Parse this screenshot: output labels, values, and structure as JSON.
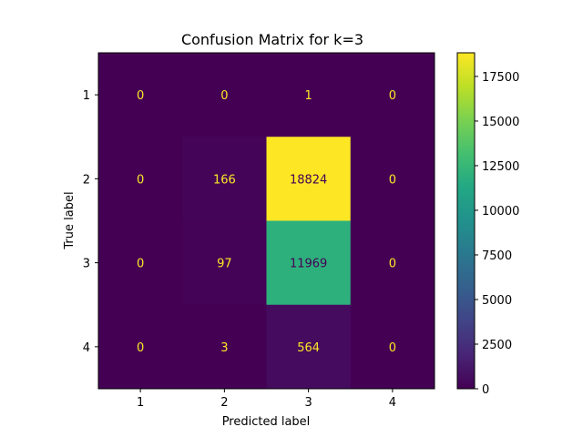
{
  "chart_data": {
    "type": "heatmap",
    "title": "Confusion Matrix for k=3",
    "xlabel": "Predicted label",
    "ylabel": "True label",
    "x_categories": [
      "1",
      "2",
      "3",
      "4"
    ],
    "y_categories": [
      "1",
      "2",
      "3",
      "4"
    ],
    "values": [
      [
        0,
        0,
        1,
        0
      ],
      [
        0,
        166,
        18824,
        0
      ],
      [
        0,
        97,
        11969,
        0
      ],
      [
        0,
        3,
        564,
        0
      ]
    ],
    "colormap": "viridis",
    "vmin": 0,
    "vmax": 18824,
    "colorbar_ticks": [
      "0",
      "2500",
      "5000",
      "7500",
      "10000",
      "12500",
      "15000",
      "17500"
    ],
    "text_color_dark_cells": "#fde725",
    "text_color_bright_cells": "#440154"
  }
}
